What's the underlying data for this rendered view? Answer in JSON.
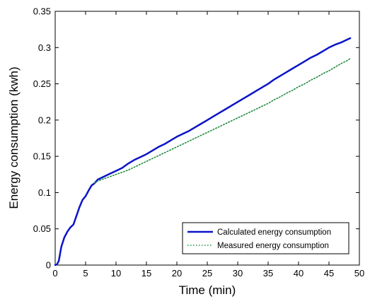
{
  "chart_data": {
    "type": "line",
    "xlabel": "Time (min)",
    "ylabel": "Energy consumption (kwh)",
    "xlim": [
      0,
      50
    ],
    "ylim": [
      0,
      0.35
    ],
    "xticks": [
      0,
      5,
      10,
      15,
      20,
      25,
      30,
      35,
      40,
      45,
      50
    ],
    "xtick_labels": [
      "0",
      "5",
      "10",
      "15",
      "20",
      "25",
      "30",
      "35",
      "40",
      "45",
      "50"
    ],
    "yticks": [
      0,
      0.05,
      0.1,
      0.15,
      0.2,
      0.25,
      0.3,
      0.35
    ],
    "ytick_labels": [
      "0",
      "0.05",
      "0.1",
      "0.15",
      "0.2",
      "0.25",
      "0.3",
      "0.35"
    ],
    "grid": false,
    "legend_position": "bottom-right",
    "series": [
      {
        "name": "Calculated energy consumption",
        "color": "#0a14c8",
        "style": "solid",
        "x": [
          0,
          0.3,
          0.6,
          1,
          1.5,
          2,
          2.5,
          3,
          3.5,
          4,
          4.5,
          5,
          5.5,
          6,
          6.5,
          7,
          8,
          9,
          10,
          11,
          12,
          13,
          14,
          15,
          16,
          17,
          18,
          19,
          20,
          21,
          22,
          23,
          24,
          25,
          26,
          27,
          28,
          29,
          30,
          31,
          32,
          33,
          34,
          35,
          36,
          37,
          38,
          39,
          40,
          41,
          42,
          43,
          44,
          45,
          46,
          47,
          48,
          48.5
        ],
        "y": [
          0,
          0.001,
          0.006,
          0.025,
          0.038,
          0.046,
          0.052,
          0.056,
          0.068,
          0.08,
          0.09,
          0.095,
          0.103,
          0.11,
          0.113,
          0.118,
          0.122,
          0.126,
          0.13,
          0.134,
          0.14,
          0.145,
          0.149,
          0.153,
          0.158,
          0.163,
          0.167,
          0.172,
          0.177,
          0.181,
          0.185,
          0.19,
          0.195,
          0.2,
          0.205,
          0.21,
          0.215,
          0.22,
          0.225,
          0.23,
          0.235,
          0.24,
          0.245,
          0.25,
          0.256,
          0.261,
          0.266,
          0.271,
          0.276,
          0.281,
          0.286,
          0.29,
          0.295,
          0.3,
          0.304,
          0.307,
          0.311,
          0.313
        ]
      },
      {
        "name": "Measured energy consumption",
        "color": "#1e8c3c",
        "style": "dotted",
        "x": [
          6.5,
          7,
          8,
          9,
          10,
          11,
          12,
          13,
          14,
          15,
          16,
          17,
          18,
          19,
          20,
          21,
          22,
          23,
          24,
          25,
          26,
          27,
          28,
          29,
          30,
          31,
          32,
          33,
          34,
          35,
          36,
          37,
          38,
          39,
          40,
          41,
          42,
          43,
          44,
          45,
          46,
          47,
          48,
          48.5
        ],
        "y": [
          0.113,
          0.116,
          0.119,
          0.122,
          0.125,
          0.128,
          0.131,
          0.135,
          0.139,
          0.143,
          0.147,
          0.151,
          0.155,
          0.159,
          0.163,
          0.167,
          0.171,
          0.175,
          0.179,
          0.183,
          0.187,
          0.191,
          0.195,
          0.199,
          0.203,
          0.207,
          0.211,
          0.215,
          0.219,
          0.223,
          0.228,
          0.232,
          0.237,
          0.241,
          0.246,
          0.25,
          0.255,
          0.259,
          0.264,
          0.268,
          0.273,
          0.278,
          0.282,
          0.285
        ]
      }
    ]
  }
}
